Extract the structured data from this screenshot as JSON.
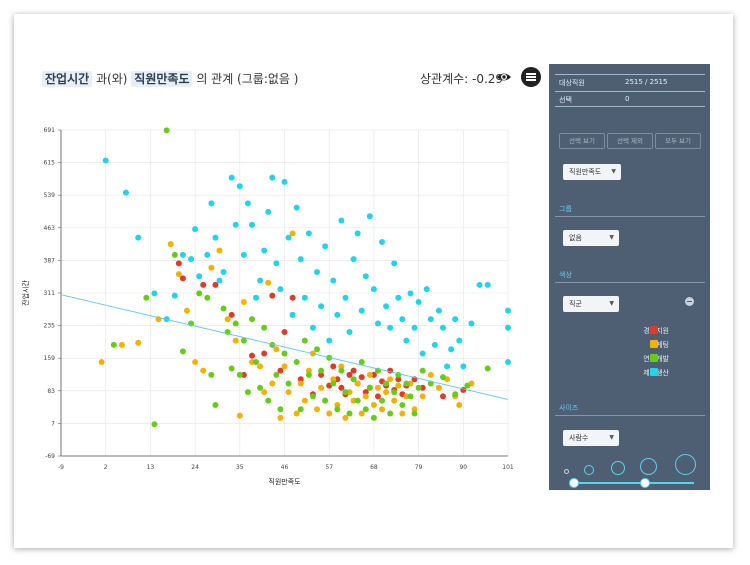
{
  "header": {
    "x_var": "잔업시간",
    "connector": "과(와)",
    "y_var": "직원만족도",
    "suffix": "의 관계 (그룹:없음 )",
    "correlation": "상관계수: -0.29"
  },
  "panel": {
    "target_label": "대상직원",
    "target_value": "2515 / 2515",
    "selected_label": "선택",
    "selected_value": "0",
    "buttons": [
      "선택 보기",
      "선택 제외",
      "모두 보기"
    ],
    "x_select": "직원만족도",
    "group_title": "그룹",
    "group_select": "없음",
    "color_title": "색상",
    "color_select": "직군",
    "legend": [
      {
        "label": "경영지원",
        "color": "#e03a2a"
      },
      {
        "label": "마케팅",
        "color": "#f5b000"
      },
      {
        "label": "연구개발",
        "color": "#66cc1a"
      },
      {
        "label": "제조생산",
        "color": "#22d3ee"
      }
    ],
    "size_title": "사이즈",
    "size_select": "사람수"
  },
  "chart_data": {
    "type": "scatter",
    "xlabel": "직원만족도",
    "ylabel": "잔업시간",
    "xticks": [
      -9,
      2,
      13,
      24,
      35,
      46,
      57,
      68,
      79,
      90,
      101
    ],
    "yticks": [
      -69,
      7,
      83,
      159,
      235,
      311,
      387,
      463,
      539,
      615,
      691
    ],
    "xlim": [
      -9,
      101
    ],
    "ylim": [
      -69,
      691
    ],
    "grid": true,
    "trendline": {
      "x": [
        -9,
        101
      ],
      "y": [
        307,
        63
      ]
    },
    "series": [
      {
        "name": "경영지원",
        "color": "#e03a2a",
        "points": [
          [
            20,
            380
          ],
          [
            21,
            345
          ],
          [
            26,
            330
          ],
          [
            29,
            330
          ],
          [
            33,
            260
          ],
          [
            36,
            120
          ],
          [
            38,
            165
          ],
          [
            41,
            170
          ],
          [
            43,
            305
          ],
          [
            45,
            130
          ],
          [
            46,
            220
          ],
          [
            48,
            300
          ],
          [
            50,
            110
          ],
          [
            53,
            75
          ],
          [
            55,
            120
          ],
          [
            57,
            95
          ],
          [
            58,
            140
          ],
          [
            59,
            110
          ],
          [
            60,
            90
          ],
          [
            61,
            75
          ],
          [
            62,
            120
          ],
          [
            63,
            130
          ],
          [
            64,
            100
          ],
          [
            65,
            115
          ],
          [
            66,
            80
          ],
          [
            67,
            90
          ],
          [
            68,
            120
          ],
          [
            69,
            70
          ],
          [
            70,
            105
          ],
          [
            71,
            95
          ],
          [
            72,
            130
          ],
          [
            73,
            85
          ],
          [
            74,
            110
          ],
          [
            75,
            75
          ],
          [
            76,
            95
          ],
          [
            78,
            110
          ],
          [
            80,
            90
          ],
          [
            85,
            70
          ],
          [
            90,
            85
          ]
        ]
      },
      {
        "name": "마케팅",
        "color": "#f5b000",
        "points": [
          [
            1,
            150
          ],
          [
            6,
            190
          ],
          [
            10,
            195
          ],
          [
            15,
            250
          ],
          [
            18,
            425
          ],
          [
            20,
            355
          ],
          [
            22,
            270
          ],
          [
            24,
            150
          ],
          [
            26,
            130
          ],
          [
            28,
            370
          ],
          [
            30,
            410
          ],
          [
            32,
            250
          ],
          [
            34,
            200
          ],
          [
            35,
            25
          ],
          [
            36,
            290
          ],
          [
            38,
            150
          ],
          [
            40,
            140
          ],
          [
            41,
            80
          ],
          [
            42,
            335
          ],
          [
            43,
            100
          ],
          [
            44,
            180
          ],
          [
            45,
            20
          ],
          [
            46,
            140
          ],
          [
            47,
            80
          ],
          [
            48,
            450
          ],
          [
            49,
            30
          ],
          [
            50,
            100
          ],
          [
            51,
            60
          ],
          [
            52,
            130
          ],
          [
            53,
            170
          ],
          [
            54,
            40
          ],
          [
            55,
            90
          ],
          [
            56,
            60
          ],
          [
            57,
            30
          ],
          [
            58,
            110
          ],
          [
            59,
            50
          ],
          [
            60,
            140
          ],
          [
            61,
            20
          ],
          [
            62,
            80
          ],
          [
            63,
            60
          ],
          [
            64,
            100
          ],
          [
            65,
            30
          ],
          [
            66,
            70
          ],
          [
            67,
            120
          ],
          [
            68,
            50
          ],
          [
            69,
            90
          ],
          [
            70,
            40
          ],
          [
            71,
            80
          ],
          [
            72,
            110
          ],
          [
            73,
            60
          ],
          [
            74,
            95
          ],
          [
            75,
            30
          ],
          [
            76,
            70
          ],
          [
            77,
            100
          ],
          [
            78,
            40
          ],
          [
            80,
            70
          ],
          [
            82,
            120
          ],
          [
            84,
            90
          ],
          [
            86,
            110
          ],
          [
            88,
            70
          ],
          [
            89,
            50
          ],
          [
            92,
            100
          ]
        ]
      },
      {
        "name": "연구개발",
        "color": "#66cc1a",
        "points": [
          [
            4,
            190
          ],
          [
            12,
            300
          ],
          [
            14,
            5
          ],
          [
            17,
            690
          ],
          [
            19,
            400
          ],
          [
            21,
            175
          ],
          [
            23,
            240
          ],
          [
            25,
            310
          ],
          [
            27,
            300
          ],
          [
            28,
            120
          ],
          [
            29,
            50
          ],
          [
            31,
            275
          ],
          [
            32,
            220
          ],
          [
            33,
            135
          ],
          [
            34,
            240
          ],
          [
            35,
            120
          ],
          [
            36,
            200
          ],
          [
            37,
            80
          ],
          [
            38,
            250
          ],
          [
            39,
            150
          ],
          [
            40,
            90
          ],
          [
            41,
            230
          ],
          [
            42,
            60
          ],
          [
            43,
            190
          ],
          [
            44,
            120
          ],
          [
            45,
            40
          ],
          [
            46,
            170
          ],
          [
            47,
            100
          ],
          [
            48,
            260
          ],
          [
            49,
            150
          ],
          [
            50,
            40
          ],
          [
            51,
            200
          ],
          [
            52,
            120
          ],
          [
            53,
            70
          ],
          [
            54,
            180
          ],
          [
            55,
            130
          ],
          [
            56,
            60
          ],
          [
            57,
            160
          ],
          [
            58,
            100
          ],
          [
            59,
            40
          ],
          [
            60,
            130
          ],
          [
            61,
            80
          ],
          [
            62,
            30
          ],
          [
            63,
            110
          ],
          [
            64,
            60
          ],
          [
            65,
            150
          ],
          [
            66,
            40
          ],
          [
            67,
            90
          ],
          [
            68,
            20
          ],
          [
            69,
            130
          ],
          [
            70,
            60
          ],
          [
            71,
            100
          ],
          [
            72,
            30
          ],
          [
            73,
            80
          ],
          [
            74,
            120
          ],
          [
            75,
            50
          ],
          [
            76,
            100
          ],
          [
            77,
            70
          ],
          [
            78,
            30
          ],
          [
            79,
            90
          ],
          [
            80,
            130
          ],
          [
            82,
            100
          ],
          [
            85,
            115
          ],
          [
            88,
            75
          ],
          [
            91,
            95
          ],
          [
            96,
            135
          ]
        ]
      },
      {
        "name": "제조생산",
        "color": "#22d3ee",
        "points": [
          [
            2,
            620
          ],
          [
            7,
            545
          ],
          [
            10,
            440
          ],
          [
            14,
            310
          ],
          [
            17,
            250
          ],
          [
            19,
            305
          ],
          [
            21,
            400
          ],
          [
            23,
            390
          ],
          [
            24,
            460
          ],
          [
            25,
            350
          ],
          [
            27,
            400
          ],
          [
            28,
            520
          ],
          [
            29,
            440
          ],
          [
            30,
            340
          ],
          [
            31,
            360
          ],
          [
            33,
            580
          ],
          [
            34,
            470
          ],
          [
            35,
            560
          ],
          [
            36,
            400
          ],
          [
            37,
            520
          ],
          [
            38,
            470
          ],
          [
            39,
            300
          ],
          [
            40,
            340
          ],
          [
            41,
            410
          ],
          [
            42,
            500
          ],
          [
            43,
            580
          ],
          [
            44,
            380
          ],
          [
            45,
            320
          ],
          [
            46,
            570
          ],
          [
            47,
            440
          ],
          [
            48,
            260
          ],
          [
            49,
            510
          ],
          [
            50,
            390
          ],
          [
            51,
            300
          ],
          [
            52,
            450
          ],
          [
            53,
            230
          ],
          [
            54,
            360
          ],
          [
            55,
            280
          ],
          [
            56,
            420
          ],
          [
            57,
            200
          ],
          [
            58,
            340
          ],
          [
            59,
            260
          ],
          [
            60,
            480
          ],
          [
            61,
            300
          ],
          [
            62,
            220
          ],
          [
            63,
            390
          ],
          [
            64,
            450
          ],
          [
            65,
            270
          ],
          [
            66,
            350
          ],
          [
            67,
            490
          ],
          [
            68,
            320
          ],
          [
            69,
            240
          ],
          [
            70,
            430
          ],
          [
            71,
            280
          ],
          [
            72,
            230
          ],
          [
            73,
            380
          ],
          [
            74,
            300
          ],
          [
            75,
            250
          ],
          [
            76,
            200
          ],
          [
            77,
            310
          ],
          [
            78,
            230
          ],
          [
            79,
            290
          ],
          [
            80,
            170
          ],
          [
            81,
            320
          ],
          [
            82,
            250
          ],
          [
            83,
            190
          ],
          [
            84,
            270
          ],
          [
            85,
            230
          ],
          [
            86,
            140
          ],
          [
            87,
            180
          ],
          [
            88,
            250
          ],
          [
            89,
            200
          ],
          [
            90,
            140
          ],
          [
            92,
            240
          ],
          [
            94,
            330
          ],
          [
            96,
            330
          ],
          [
            101,
            270
          ],
          [
            101,
            150
          ],
          [
            101,
            230
          ]
        ]
      }
    ]
  }
}
